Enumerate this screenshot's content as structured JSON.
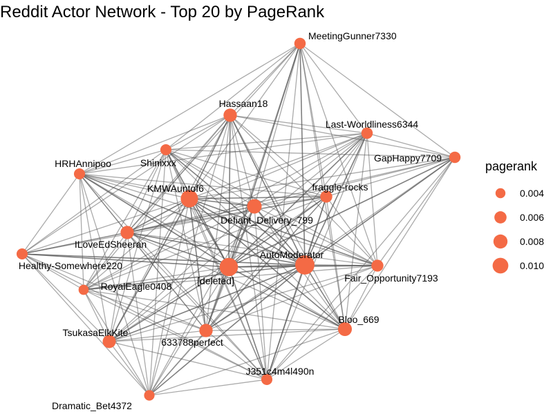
{
  "title": "Reddit Actor Network - Top 20 by PageRank",
  "colors": {
    "node": "#f46a45",
    "edge": "#555555"
  },
  "legend": {
    "title": "pagerank",
    "values": [
      0.004,
      0.006,
      0.008,
      0.01
    ],
    "labels": [
      "0.004",
      "0.006",
      "0.008",
      "0.010"
    ]
  },
  "nodes": [
    {
      "id": "MeetingGunner7330",
      "pagerank": 0.0038
    },
    {
      "id": "Hassaan18",
      "pagerank": 0.0052
    },
    {
      "id": "Last-Worldliness6344",
      "pagerank": 0.0038
    },
    {
      "id": "GapHappy7709",
      "pagerank": 0.0038
    },
    {
      "id": "Shinixxx",
      "pagerank": 0.0036
    },
    {
      "id": "HRHAnnipoo",
      "pagerank": 0.0036
    },
    {
      "id": "KMWAuntof6",
      "pagerank": 0.0088
    },
    {
      "id": "fraggle-rocks",
      "pagerank": 0.0042
    },
    {
      "id": "Defiant_Delivery_799",
      "pagerank": 0.0062
    },
    {
      "id": "ILoveEdSheeran",
      "pagerank": 0.0052
    },
    {
      "id": "Healthy-Somewhere220",
      "pagerank": 0.0036
    },
    {
      "id": "AutoModerator",
      "pagerank": 0.0108
    },
    {
      "id": "[deleted]",
      "pagerank": 0.0098
    },
    {
      "id": "Fair_Opportunity7193",
      "pagerank": 0.0042
    },
    {
      "id": "RoyalEagle0408",
      "pagerank": 0.003
    },
    {
      "id": "Bloo_669",
      "pagerank": 0.0056
    },
    {
      "id": "TsukasaElkKite",
      "pagerank": 0.005
    },
    {
      "id": "633788perfect",
      "pagerank": 0.0052
    },
    {
      "id": "J351c4m4l490n",
      "pagerank": 0.0036
    },
    {
      "id": "Dramatic_Bet4372",
      "pagerank": 0.0032
    }
  ]
}
